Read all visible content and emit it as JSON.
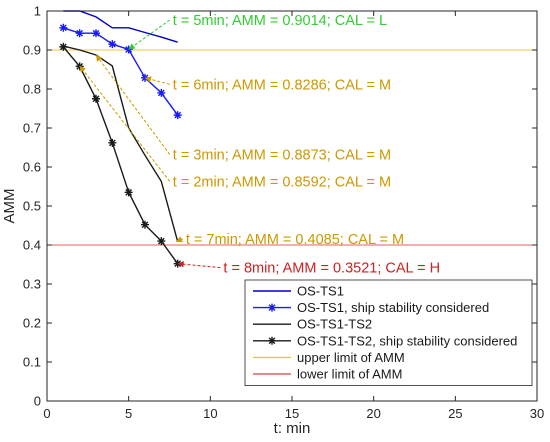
{
  "chart_data": {
    "type": "line",
    "xlabel": "t: min",
    "ylabel": "AMM",
    "xlim": [
      0,
      30
    ],
    "ylim": [
      0,
      1
    ],
    "xticks": [
      0,
      5,
      10,
      15,
      20,
      25,
      30
    ],
    "yticks": [
      0,
      0.1,
      0.2,
      0.3,
      0.4,
      0.5,
      0.6,
      0.7,
      0.8,
      0.9,
      1
    ],
    "grid": false,
    "legend_position": "bottom-right",
    "series": [
      {
        "name": "OS-TS1",
        "color": "#0000cc",
        "marker": "none",
        "x": [
          1,
          2,
          3,
          4,
          5,
          6,
          7,
          8
        ],
        "y": [
          1.0,
          1.0,
          0.985,
          0.957,
          0.957,
          0.945,
          0.933,
          0.92
        ]
      },
      {
        "name": "OS-TS1, ship stability considered",
        "color": "#1a1aff",
        "marker": "star",
        "x": [
          1,
          2,
          3,
          4,
          5,
          6,
          7,
          8
        ],
        "y": [
          0.957,
          0.943,
          0.943,
          0.915,
          0.9014,
          0.8286,
          0.79,
          0.733
        ]
      },
      {
        "name": "OS-TS1-TS2",
        "color": "#1a1a1a",
        "marker": "none",
        "x": [
          1,
          2,
          3,
          4,
          5,
          6,
          7,
          8
        ],
        "y": [
          0.91,
          0.9,
          0.8873,
          0.8592,
          0.7,
          0.63,
          0.563,
          0.4085
        ]
      },
      {
        "name": "OS-TS1-TS2, ship stability considered",
        "color": "#1a1a1a",
        "marker": "star",
        "x": [
          1,
          2,
          3,
          4,
          5,
          6,
          7,
          8
        ],
        "y": [
          0.908,
          0.858,
          0.775,
          0.662,
          0.535,
          0.452,
          0.41,
          0.3521
        ]
      },
      {
        "name": "upper limit of AMM",
        "color": "#e8c840",
        "marker": "none",
        "hline": 0.9
      },
      {
        "name": "lower limit of AMM",
        "color": "#e06060",
        "marker": "none",
        "hline": 0.4
      }
    ],
    "annotations": [
      {
        "text": "t = 5min; AMM = 0.9014; CAL = L",
        "color": "#33cc33",
        "target_x": 5,
        "target_y": 0.9014,
        "label_x": 7.7,
        "label_y": 0.977
      },
      {
        "text": "t = 6min; AMM = 0.8286; CAL = M",
        "color": "#cc9900",
        "target_x": 6,
        "target_y": 0.8286,
        "label_x": 7.7,
        "label_y": 0.812
      },
      {
        "text": "t = 3min; AMM = 0.8873; CAL = M",
        "color": "#cc9900",
        "target_x": 3,
        "target_y": 0.8873,
        "label_x": 7.7,
        "label_y": 0.632
      },
      {
        "text": "t = 2min; AMM = 0.8592; CAL = M",
        "color": "#cc9900",
        "target_x": 2,
        "target_y": 0.8592,
        "label_x": 7.7,
        "label_y": 0.563
      },
      {
        "text": "t = 7min; AMM = 0.4085; CAL = M",
        "color": "#cc9900",
        "target_x": 7.9,
        "target_y": 0.4085,
        "label_x": 8.5,
        "label_y": 0.416
      },
      {
        "text": "t = 8min; AMM = 0.3521; CAL = H",
        "color": "#cc2222",
        "target_x": 8,
        "target_y": 0.3521,
        "label_x": 10.8,
        "label_y": 0.342
      }
    ]
  }
}
